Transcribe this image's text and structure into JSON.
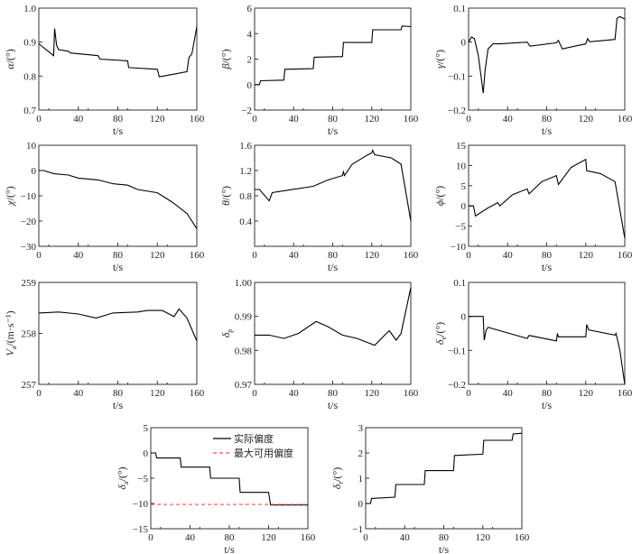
{
  "chart_data": [
    {
      "type": "line",
      "ylabel": {
        "main": "α",
        "sub": "",
        "unit": "/(°)"
      },
      "xlabel": "t/s",
      "xlim": [
        0,
        160
      ],
      "xticks": [
        0,
        40,
        80,
        120,
        160
      ],
      "ylim": [
        0.7,
        1.0
      ],
      "yticks": [
        "0.7",
        "0.8",
        "0.9",
        "1.0"
      ],
      "series": [
        {
          "color": "#000000",
          "dash": false,
          "x": [
            0,
            15,
            16,
            18,
            20,
            30,
            32,
            60,
            62,
            90,
            91,
            120,
            122,
            130,
            150,
            152,
            155,
            160
          ],
          "y": [
            0.895,
            0.86,
            0.94,
            0.89,
            0.878,
            0.873,
            0.868,
            0.86,
            0.85,
            0.845,
            0.825,
            0.82,
            0.798,
            0.802,
            0.813,
            0.855,
            0.865,
            0.945
          ]
        }
      ]
    },
    {
      "type": "line",
      "ylabel": {
        "main": "β",
        "sub": "",
        "unit": "/(°)"
      },
      "xlabel": "t/s",
      "xlim": [
        0,
        160
      ],
      "xticks": [
        0,
        40,
        80,
        120,
        160
      ],
      "ylim": [
        -2,
        6
      ],
      "yticks": [
        "−2",
        "0",
        "2",
        "4",
        "6"
      ],
      "series": [
        {
          "color": "#000000",
          "dash": false,
          "x": [
            0,
            5,
            6,
            30,
            31,
            60,
            61,
            90,
            91,
            120,
            121,
            150,
            151,
            160
          ],
          "y": [
            0,
            0,
            0.3,
            0.35,
            1.2,
            1.25,
            2.15,
            2.2,
            3.3,
            3.3,
            4.3,
            4.3,
            4.6,
            4.55
          ]
        }
      ]
    },
    {
      "type": "line",
      "ylabel": {
        "main": "γ",
        "sub": "",
        "unit": "/(°)"
      },
      "xlabel": "t/s",
      "xlim": [
        0,
        160
      ],
      "xticks": [
        0,
        40,
        80,
        120,
        160
      ],
      "ylim": [
        -0.2,
        0.1
      ],
      "yticks": [
        "−0.2",
        "−0.1",
        "0",
        "0.1"
      ],
      "series": [
        {
          "color": "#000000",
          "dash": false,
          "x": [
            0,
            3,
            6,
            10,
            15,
            17,
            20,
            25,
            32,
            60,
            63,
            90,
            92,
            96,
            120,
            122,
            124,
            150,
            152,
            155,
            160
          ],
          "y": [
            0,
            0.015,
            0.01,
            -0.04,
            -0.15,
            -0.08,
            -0.02,
            -0.005,
            -0.005,
            0,
            -0.012,
            -0.002,
            0.005,
            -0.02,
            -0.005,
            0.01,
            0.001,
            0.008,
            0.07,
            0.075,
            0.068
          ]
        }
      ]
    },
    {
      "type": "line",
      "ylabel": {
        "main": "χ",
        "sub": "",
        "unit": "/(°)"
      },
      "xlabel": "t/s",
      "xlim": [
        0,
        160
      ],
      "xticks": [
        0,
        40,
        80,
        120,
        160
      ],
      "ylim": [
        -30,
        10
      ],
      "yticks": [
        "−30",
        "−20",
        "−10",
        "0",
        "10"
      ],
      "series": [
        {
          "color": "#000000",
          "dash": false,
          "x": [
            0,
            5,
            15,
            30,
            40,
            60,
            75,
            90,
            100,
            120,
            135,
            150,
            160
          ],
          "y": [
            0,
            0,
            -1.2,
            -1.8,
            -3,
            -3.7,
            -5.2,
            -5.8,
            -7.5,
            -8.8,
            -12.5,
            -17,
            -23
          ]
        }
      ]
    },
    {
      "type": "line",
      "ylabel": {
        "main": "θ",
        "sub": "",
        "unit": "/(°)"
      },
      "xlabel": "t/s",
      "xlim": [
        0,
        160
      ],
      "xticks": [
        0,
        40,
        80,
        120,
        160
      ],
      "ylim": [
        0,
        1.6
      ],
      "yticks": [
        "",
        "0.4",
        "0.8",
        "1.2",
        "1.6"
      ],
      "series": [
        {
          "color": "#000000",
          "dash": false,
          "x": [
            0,
            5,
            15,
            18,
            30,
            60,
            75,
            90,
            91,
            92,
            100,
            115,
            120,
            121,
            123,
            140,
            150,
            160
          ],
          "y": [
            0.9,
            0.9,
            0.72,
            0.85,
            0.88,
            0.95,
            1.05,
            1.12,
            1.18,
            1.12,
            1.3,
            1.44,
            1.48,
            1.52,
            1.45,
            1.4,
            1.3,
            0.4
          ]
        }
      ]
    },
    {
      "type": "line",
      "ylabel": {
        "main": "ϕ",
        "sub": "",
        "unit": "/(°)"
      },
      "xlabel": "t/s",
      "xlim": [
        0,
        160
      ],
      "xticks": [
        0,
        40,
        80,
        120,
        160
      ],
      "ylim": [
        -10,
        15
      ],
      "yticks": [
        "−10",
        "−5",
        "0",
        "5",
        "10",
        "15"
      ],
      "series": [
        {
          "color": "#000000",
          "dash": false,
          "x": [
            0,
            5,
            7,
            20,
            30,
            32,
            45,
            60,
            62,
            75,
            90,
            92,
            105,
            120,
            121,
            135,
            150,
            160
          ],
          "y": [
            0,
            0,
            -2.5,
            -0.5,
            0.8,
            0,
            2.8,
            4.2,
            3,
            6,
            7.5,
            5.3,
            9.5,
            11.5,
            8.7,
            8,
            6,
            -8
          ]
        }
      ]
    },
    {
      "type": "line",
      "ylabel": {
        "main": "V",
        "sub": "a",
        "unit": "/(m·s⁻¹)"
      },
      "xlabel": "t/s",
      "xlim": [
        0,
        160
      ],
      "xticks": [
        0,
        40,
        80,
        120,
        160
      ],
      "ylim": [
        257,
        259
      ],
      "yticks": [
        "257",
        "258",
        "259"
      ],
      "series": [
        {
          "color": "#000000",
          "dash": false,
          "x": [
            0,
            20,
            40,
            58,
            75,
            100,
            110,
            125,
            137,
            142,
            150,
            160
          ],
          "y": [
            258.4,
            258.42,
            258.38,
            258.3,
            258.4,
            258.42,
            258.45,
            258.45,
            258.33,
            258.48,
            258.3,
            257.85
          ]
        }
      ]
    },
    {
      "type": "line",
      "ylabel": {
        "main": "δ",
        "sub": "p",
        "unit": ""
      },
      "xlabel": "t/s",
      "xlim": [
        0,
        160
      ],
      "xticks": [
        0,
        40,
        80,
        120,
        160
      ],
      "ylim": [
        0.97,
        1.0
      ],
      "yticks": [
        "0.97",
        "0.98",
        "0.99",
        "1.00"
      ],
      "series": [
        {
          "color": "#000000",
          "dash": false,
          "x": [
            0,
            15,
            30,
            45,
            63,
            75,
            90,
            105,
            123,
            135,
            138,
            145,
            150,
            160
          ],
          "y": [
            0.9845,
            0.9845,
            0.9835,
            0.985,
            0.9885,
            0.987,
            0.9845,
            0.9835,
            0.9815,
            0.985,
            0.9858,
            0.983,
            0.985,
            0.9985
          ]
        }
      ]
    },
    {
      "type": "line",
      "ylabel": {
        "main": "δ",
        "sub": "e",
        "unit": "/(°)"
      },
      "xlabel": "t/s",
      "xlim": [
        0,
        160
      ],
      "xticks": [
        0,
        40,
        80,
        120,
        160
      ],
      "ylim": [
        -0.2,
        0.1
      ],
      "yticks": [
        "−0.2",
        "−0.1",
        "0",
        "0.1"
      ],
      "series": [
        {
          "color": "#000000",
          "dash": false,
          "x": [
            0,
            15,
            16,
            18,
            20,
            60,
            62,
            90,
            91,
            92,
            120,
            121,
            123,
            150,
            151,
            155,
            160
          ],
          "y": [
            0,
            0,
            -0.07,
            -0.04,
            -0.032,
            -0.065,
            -0.056,
            -0.072,
            -0.05,
            -0.06,
            -0.06,
            -0.024,
            -0.04,
            -0.055,
            -0.05,
            -0.1,
            -0.2
          ]
        }
      ]
    },
    {
      "type": "line",
      "ylabel": {
        "main": "δ",
        "sub": "a",
        "unit": "/(°)"
      },
      "xlabel": "t/s",
      "xlim": [
        0,
        160
      ],
      "xticks": [
        0,
        40,
        80,
        120,
        160
      ],
      "ylim": [
        -15,
        5
      ],
      "yticks": [
        "−15",
        "−10",
        "−5",
        "0",
        "5"
      ],
      "legend": "top-right",
      "series": [
        {
          "name": "实际偏度",
          "color": "#000000",
          "dash": false,
          "x": [
            0,
            5,
            6,
            30,
            31,
            60,
            61,
            90,
            91,
            120,
            122,
            160
          ],
          "y": [
            0,
            0,
            -1,
            -1,
            -2.8,
            -2.8,
            -5,
            -5,
            -7.8,
            -7.8,
            -10.3,
            -10.3
          ]
        },
        {
          "name": "最大可用偏度",
          "color": "#ff4d4d",
          "dash": true,
          "x": [
            0,
            160
          ],
          "y": [
            -10.2,
            -10.2
          ]
        }
      ]
    },
    {
      "type": "line",
      "ylabel": {
        "main": "δ",
        "sub": "r",
        "unit": "/(°)"
      },
      "xlabel": "t/s",
      "xlim": [
        0,
        160
      ],
      "xticks": [
        0,
        40,
        80,
        120,
        160
      ],
      "ylim": [
        -1,
        3
      ],
      "yticks": [
        "−1",
        "0",
        "1",
        "2",
        "3"
      ],
      "series": [
        {
          "color": "#000000",
          "dash": false,
          "x": [
            0,
            5,
            6,
            30,
            31,
            60,
            61,
            90,
            91,
            120,
            121,
            150,
            151,
            160
          ],
          "y": [
            0,
            0,
            0.2,
            0.25,
            0.75,
            0.75,
            1.3,
            1.3,
            1.9,
            1.95,
            2.5,
            2.5,
            2.75,
            2.78
          ]
        }
      ]
    }
  ]
}
